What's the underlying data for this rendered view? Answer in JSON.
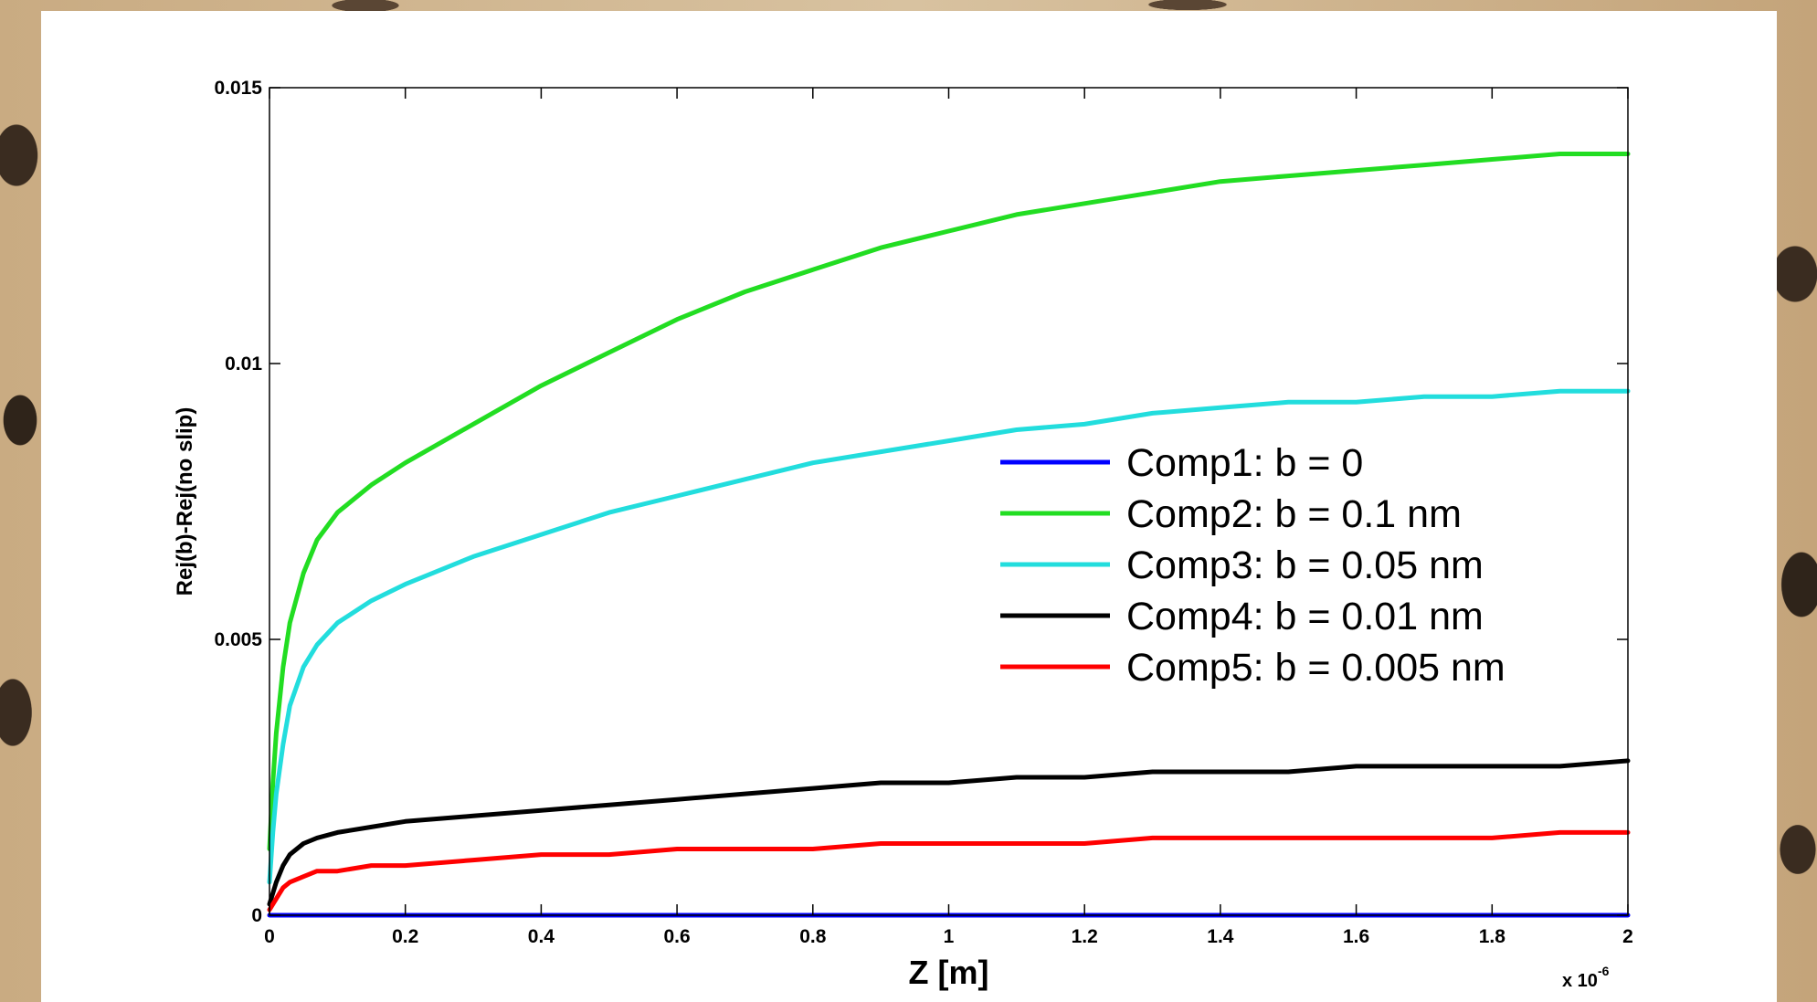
{
  "chart_data": {
    "type": "line",
    "title": "",
    "xlabel": "Z [m]",
    "ylabel": "Rej(b)-Rej(no slip)",
    "x_exponent_label": "x 10",
    "x_exponent_power": "-6",
    "xlim": [
      0,
      2
    ],
    "ylim": [
      0,
      0.015
    ],
    "x_ticks": [
      0,
      0.2,
      0.4,
      0.6,
      0.8,
      1,
      1.2,
      1.4,
      1.6,
      1.8,
      2
    ],
    "x_tick_labels": [
      "0",
      "0.2",
      "0.4",
      "0.6",
      "0.8",
      "1",
      "1.2",
      "1.4",
      "1.6",
      "1.8",
      "2"
    ],
    "y_ticks": [
      0,
      0.005,
      0.01,
      0.015
    ],
    "y_tick_labels": [
      "0",
      "0.005",
      "0.01",
      "0.015"
    ],
    "grid": false,
    "legend_position": "center-right",
    "x": [
      0,
      0.005,
      0.01,
      0.02,
      0.03,
      0.05,
      0.07,
      0.1,
      0.15,
      0.2,
      0.3,
      0.4,
      0.5,
      0.6,
      0.7,
      0.8,
      0.9,
      1.0,
      1.1,
      1.2,
      1.3,
      1.4,
      1.5,
      1.6,
      1.7,
      1.8,
      1.9,
      2.0
    ],
    "series": [
      {
        "name": "Comp1: b = 0",
        "color": "#0000ff",
        "values": [
          0,
          0,
          0,
          0,
          0,
          0,
          0,
          0,
          0,
          0,
          0,
          0,
          0,
          0,
          0,
          0,
          0,
          0,
          0,
          0,
          0,
          0,
          0,
          0,
          0,
          0,
          0,
          0
        ]
      },
      {
        "name": "Comp2: b = 0.1 nm",
        "color": "#22dd22",
        "values": [
          0.0012,
          0.0024,
          0.0033,
          0.0045,
          0.0053,
          0.0062,
          0.0068,
          0.0073,
          0.0078,
          0.0082,
          0.0089,
          0.0096,
          0.0102,
          0.0108,
          0.0113,
          0.0117,
          0.0121,
          0.0124,
          0.0127,
          0.0129,
          0.0131,
          0.0133,
          0.0134,
          0.0135,
          0.0136,
          0.0137,
          0.0138,
          0.0138
        ]
      },
      {
        "name": "Comp3: b = 0.05 nm",
        "color": "#22dddd",
        "values": [
          0.0006,
          0.0015,
          0.0022,
          0.0031,
          0.0038,
          0.0045,
          0.0049,
          0.0053,
          0.0057,
          0.006,
          0.0065,
          0.0069,
          0.0073,
          0.0076,
          0.0079,
          0.0082,
          0.0084,
          0.0086,
          0.0088,
          0.0089,
          0.0091,
          0.0092,
          0.0093,
          0.0093,
          0.0094,
          0.0094,
          0.0095,
          0.0095
        ]
      },
      {
        "name": "Comp4: b = 0.01 nm",
        "color": "#000000",
        "values": [
          0.0002,
          0.0004,
          0.0006,
          0.0009,
          0.0011,
          0.0013,
          0.0014,
          0.0015,
          0.0016,
          0.0017,
          0.0018,
          0.0019,
          0.002,
          0.0021,
          0.0022,
          0.0023,
          0.0024,
          0.0024,
          0.0025,
          0.0025,
          0.0026,
          0.0026,
          0.0026,
          0.0027,
          0.0027,
          0.0027,
          0.0027,
          0.0028
        ]
      },
      {
        "name": "Comp5: b = 0.005 nm",
        "color": "#ff0000",
        "values": [
          0.0001,
          0.0002,
          0.0003,
          0.0005,
          0.0006,
          0.0007,
          0.0008,
          0.0008,
          0.0009,
          0.0009,
          0.001,
          0.0011,
          0.0011,
          0.0012,
          0.0012,
          0.0012,
          0.0013,
          0.0013,
          0.0013,
          0.0013,
          0.0014,
          0.0014,
          0.0014,
          0.0014,
          0.0014,
          0.0014,
          0.0015,
          0.0015
        ]
      }
    ]
  }
}
